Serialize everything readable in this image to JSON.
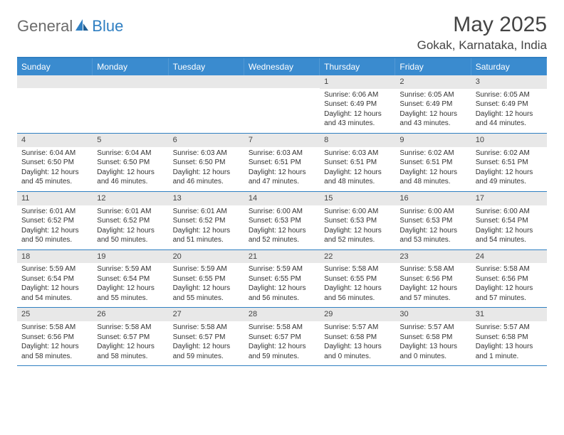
{
  "brand": {
    "part1": "General",
    "part2": "Blue"
  },
  "header": {
    "month": "May 2025",
    "location": "Gokak, Karnataka, India"
  },
  "colors": {
    "header_bar": "#3a8bcf",
    "header_border": "#2f7fc2",
    "row_band": "#e8e8e8",
    "text": "#333333",
    "title": "#444444"
  },
  "day_names": [
    "Sunday",
    "Monday",
    "Tuesday",
    "Wednesday",
    "Thursday",
    "Friday",
    "Saturday"
  ],
  "weeks": [
    [
      {
        "empty": true
      },
      {
        "empty": true
      },
      {
        "empty": true
      },
      {
        "empty": true
      },
      {
        "num": "1",
        "sunrise": "Sunrise: 6:06 AM",
        "sunset": "Sunset: 6:49 PM",
        "day1": "Daylight: 12 hours",
        "day2": "and 43 minutes."
      },
      {
        "num": "2",
        "sunrise": "Sunrise: 6:05 AM",
        "sunset": "Sunset: 6:49 PM",
        "day1": "Daylight: 12 hours",
        "day2": "and 43 minutes."
      },
      {
        "num": "3",
        "sunrise": "Sunrise: 6:05 AM",
        "sunset": "Sunset: 6:49 PM",
        "day1": "Daylight: 12 hours",
        "day2": "and 44 minutes."
      }
    ],
    [
      {
        "num": "4",
        "sunrise": "Sunrise: 6:04 AM",
        "sunset": "Sunset: 6:50 PM",
        "day1": "Daylight: 12 hours",
        "day2": "and 45 minutes."
      },
      {
        "num": "5",
        "sunrise": "Sunrise: 6:04 AM",
        "sunset": "Sunset: 6:50 PM",
        "day1": "Daylight: 12 hours",
        "day2": "and 46 minutes."
      },
      {
        "num": "6",
        "sunrise": "Sunrise: 6:03 AM",
        "sunset": "Sunset: 6:50 PM",
        "day1": "Daylight: 12 hours",
        "day2": "and 46 minutes."
      },
      {
        "num": "7",
        "sunrise": "Sunrise: 6:03 AM",
        "sunset": "Sunset: 6:51 PM",
        "day1": "Daylight: 12 hours",
        "day2": "and 47 minutes."
      },
      {
        "num": "8",
        "sunrise": "Sunrise: 6:03 AM",
        "sunset": "Sunset: 6:51 PM",
        "day1": "Daylight: 12 hours",
        "day2": "and 48 minutes."
      },
      {
        "num": "9",
        "sunrise": "Sunrise: 6:02 AM",
        "sunset": "Sunset: 6:51 PM",
        "day1": "Daylight: 12 hours",
        "day2": "and 48 minutes."
      },
      {
        "num": "10",
        "sunrise": "Sunrise: 6:02 AM",
        "sunset": "Sunset: 6:51 PM",
        "day1": "Daylight: 12 hours",
        "day2": "and 49 minutes."
      }
    ],
    [
      {
        "num": "11",
        "sunrise": "Sunrise: 6:01 AM",
        "sunset": "Sunset: 6:52 PM",
        "day1": "Daylight: 12 hours",
        "day2": "and 50 minutes."
      },
      {
        "num": "12",
        "sunrise": "Sunrise: 6:01 AM",
        "sunset": "Sunset: 6:52 PM",
        "day1": "Daylight: 12 hours",
        "day2": "and 50 minutes."
      },
      {
        "num": "13",
        "sunrise": "Sunrise: 6:01 AM",
        "sunset": "Sunset: 6:52 PM",
        "day1": "Daylight: 12 hours",
        "day2": "and 51 minutes."
      },
      {
        "num": "14",
        "sunrise": "Sunrise: 6:00 AM",
        "sunset": "Sunset: 6:53 PM",
        "day1": "Daylight: 12 hours",
        "day2": "and 52 minutes."
      },
      {
        "num": "15",
        "sunrise": "Sunrise: 6:00 AM",
        "sunset": "Sunset: 6:53 PM",
        "day1": "Daylight: 12 hours",
        "day2": "and 52 minutes."
      },
      {
        "num": "16",
        "sunrise": "Sunrise: 6:00 AM",
        "sunset": "Sunset: 6:53 PM",
        "day1": "Daylight: 12 hours",
        "day2": "and 53 minutes."
      },
      {
        "num": "17",
        "sunrise": "Sunrise: 6:00 AM",
        "sunset": "Sunset: 6:54 PM",
        "day1": "Daylight: 12 hours",
        "day2": "and 54 minutes."
      }
    ],
    [
      {
        "num": "18",
        "sunrise": "Sunrise: 5:59 AM",
        "sunset": "Sunset: 6:54 PM",
        "day1": "Daylight: 12 hours",
        "day2": "and 54 minutes."
      },
      {
        "num": "19",
        "sunrise": "Sunrise: 5:59 AM",
        "sunset": "Sunset: 6:54 PM",
        "day1": "Daylight: 12 hours",
        "day2": "and 55 minutes."
      },
      {
        "num": "20",
        "sunrise": "Sunrise: 5:59 AM",
        "sunset": "Sunset: 6:55 PM",
        "day1": "Daylight: 12 hours",
        "day2": "and 55 minutes."
      },
      {
        "num": "21",
        "sunrise": "Sunrise: 5:59 AM",
        "sunset": "Sunset: 6:55 PM",
        "day1": "Daylight: 12 hours",
        "day2": "and 56 minutes."
      },
      {
        "num": "22",
        "sunrise": "Sunrise: 5:58 AM",
        "sunset": "Sunset: 6:55 PM",
        "day1": "Daylight: 12 hours",
        "day2": "and 56 minutes."
      },
      {
        "num": "23",
        "sunrise": "Sunrise: 5:58 AM",
        "sunset": "Sunset: 6:56 PM",
        "day1": "Daylight: 12 hours",
        "day2": "and 57 minutes."
      },
      {
        "num": "24",
        "sunrise": "Sunrise: 5:58 AM",
        "sunset": "Sunset: 6:56 PM",
        "day1": "Daylight: 12 hours",
        "day2": "and 57 minutes."
      }
    ],
    [
      {
        "num": "25",
        "sunrise": "Sunrise: 5:58 AM",
        "sunset": "Sunset: 6:56 PM",
        "day1": "Daylight: 12 hours",
        "day2": "and 58 minutes."
      },
      {
        "num": "26",
        "sunrise": "Sunrise: 5:58 AM",
        "sunset": "Sunset: 6:57 PM",
        "day1": "Daylight: 12 hours",
        "day2": "and 58 minutes."
      },
      {
        "num": "27",
        "sunrise": "Sunrise: 5:58 AM",
        "sunset": "Sunset: 6:57 PM",
        "day1": "Daylight: 12 hours",
        "day2": "and 59 minutes."
      },
      {
        "num": "28",
        "sunrise": "Sunrise: 5:58 AM",
        "sunset": "Sunset: 6:57 PM",
        "day1": "Daylight: 12 hours",
        "day2": "and 59 minutes."
      },
      {
        "num": "29",
        "sunrise": "Sunrise: 5:57 AM",
        "sunset": "Sunset: 6:58 PM",
        "day1": "Daylight: 13 hours",
        "day2": "and 0 minutes."
      },
      {
        "num": "30",
        "sunrise": "Sunrise: 5:57 AM",
        "sunset": "Sunset: 6:58 PM",
        "day1": "Daylight: 13 hours",
        "day2": "and 0 minutes."
      },
      {
        "num": "31",
        "sunrise": "Sunrise: 5:57 AM",
        "sunset": "Sunset: 6:58 PM",
        "day1": "Daylight: 13 hours",
        "day2": "and 1 minute."
      }
    ]
  ]
}
